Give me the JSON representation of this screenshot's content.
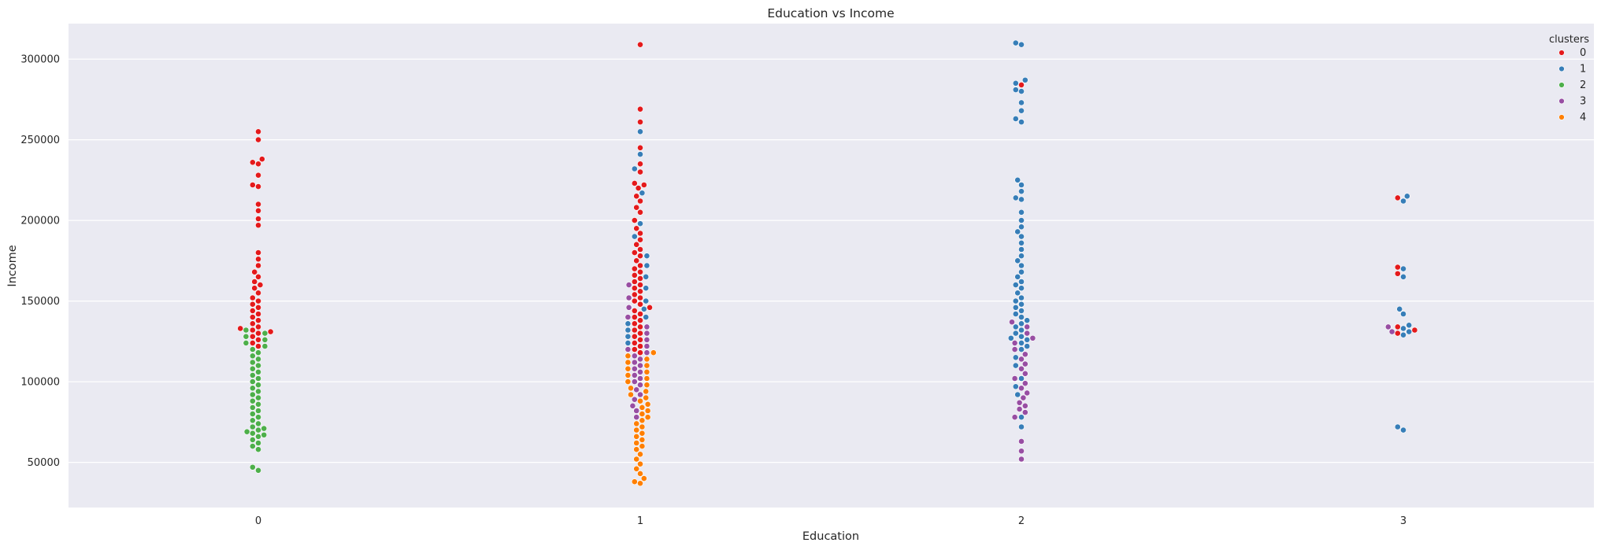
{
  "chart_data": {
    "type": "scatter",
    "subtype": "swarm",
    "title": "Education vs Income",
    "xlabel": "Education",
    "ylabel": "Income",
    "categories": [
      "0",
      "1",
      "2",
      "3"
    ],
    "yticks": [
      "50000",
      "100000",
      "150000",
      "200000",
      "250000",
      "300000"
    ],
    "ytick_values": [
      50000,
      100000,
      150000,
      200000,
      250000,
      300000
    ],
    "ylim": [
      22000,
      322000
    ],
    "grid": true,
    "legend": {
      "title": "clusters",
      "placement": "top-right",
      "entries": [
        "0",
        "1",
        "2",
        "3",
        "4"
      ]
    },
    "colors": {
      "0": "#e41a1c",
      "1": "#377eb8",
      "2": "#4daf4a",
      "3": "#984ea3",
      "4": "#ff7f00",
      "background": "#eaeaf2",
      "grid": "#ffffff"
    },
    "series": [
      {
        "name": "0",
        "points": [
          [
            0,
            255000
          ],
          [
            0,
            250000
          ],
          [
            0,
            238000
          ],
          [
            0,
            236000
          ],
          [
            0,
            235000
          ],
          [
            0,
            228000
          ],
          [
            0,
            222000
          ],
          [
            0,
            221000
          ],
          [
            0,
            210000
          ],
          [
            0,
            206000
          ],
          [
            0,
            201000
          ],
          [
            0,
            197000
          ],
          [
            0,
            180000
          ],
          [
            0,
            176000
          ],
          [
            0,
            172000
          ],
          [
            0,
            168000
          ],
          [
            0,
            165000
          ],
          [
            0,
            162000
          ],
          [
            0,
            160000
          ],
          [
            0,
            158000
          ],
          [
            0,
            155000
          ],
          [
            0,
            152000
          ],
          [
            0,
            150000
          ],
          [
            0,
            148000
          ],
          [
            0,
            146000
          ],
          [
            0,
            144000
          ],
          [
            0,
            142000
          ],
          [
            0,
            140000
          ],
          [
            0,
            138000
          ],
          [
            0,
            136000
          ],
          [
            0,
            134000
          ],
          [
            0,
            133000
          ],
          [
            0,
            132000
          ],
          [
            0,
            131000
          ],
          [
            0,
            130000
          ],
          [
            0,
            128000
          ],
          [
            0,
            126000
          ],
          [
            0,
            124000
          ],
          [
            0,
            122000
          ],
          [
            1,
            309000
          ],
          [
            1,
            269000
          ],
          [
            1,
            261000
          ],
          [
            1,
            245000
          ],
          [
            1,
            235000
          ],
          [
            1,
            230000
          ],
          [
            1,
            223000
          ],
          [
            1,
            222000
          ],
          [
            1,
            220000
          ],
          [
            1,
            215000
          ],
          [
            1,
            212000
          ],
          [
            1,
            208000
          ],
          [
            1,
            205000
          ],
          [
            1,
            200000
          ],
          [
            1,
            195000
          ],
          [
            1,
            192000
          ],
          [
            1,
            188000
          ],
          [
            1,
            185000
          ],
          [
            1,
            182000
          ],
          [
            1,
            180000
          ],
          [
            1,
            178000
          ],
          [
            1,
            175000
          ],
          [
            1,
            172000
          ],
          [
            1,
            170000
          ],
          [
            1,
            168000
          ],
          [
            1,
            166000
          ],
          [
            1,
            164000
          ],
          [
            1,
            162000
          ],
          [
            1,
            160000
          ],
          [
            1,
            158000
          ],
          [
            1,
            156000
          ],
          [
            1,
            154000
          ],
          [
            1,
            152000
          ],
          [
            1,
            150000
          ],
          [
            1,
            148000
          ],
          [
            1,
            146000
          ],
          [
            1,
            144000
          ],
          [
            1,
            142000
          ],
          [
            1,
            140000
          ],
          [
            1,
            138000
          ],
          [
            1,
            136000
          ],
          [
            1,
            134000
          ],
          [
            1,
            132000
          ],
          [
            1,
            130000
          ],
          [
            1,
            128000
          ],
          [
            1,
            126000
          ],
          [
            1,
            124000
          ],
          [
            1,
            122000
          ],
          [
            1,
            120000
          ],
          [
            1,
            118000
          ],
          [
            2,
            284000
          ],
          [
            3,
            214000
          ],
          [
            3,
            171000
          ],
          [
            3,
            167000
          ],
          [
            3,
            134000
          ],
          [
            3,
            132000
          ],
          [
            3,
            130000
          ]
        ]
      },
      {
        "name": "1",
        "points": [
          [
            1,
            255000
          ],
          [
            1,
            241000
          ],
          [
            1,
            232000
          ],
          [
            1,
            217000
          ],
          [
            1,
            198000
          ],
          [
            1,
            190000
          ],
          [
            1,
            178000
          ],
          [
            1,
            172000
          ],
          [
            1,
            165000
          ],
          [
            1,
            158000
          ],
          [
            1,
            150000
          ],
          [
            1,
            145000
          ],
          [
            1,
            140000
          ],
          [
            1,
            136000
          ],
          [
            1,
            132000
          ],
          [
            1,
            128000
          ],
          [
            1,
            124000
          ],
          [
            2,
            310000
          ],
          [
            2,
            309000
          ],
          [
            2,
            287000
          ],
          [
            2,
            285000
          ],
          [
            2,
            281000
          ],
          [
            2,
            280000
          ],
          [
            2,
            273000
          ],
          [
            2,
            268000
          ],
          [
            2,
            263000
          ],
          [
            2,
            261000
          ],
          [
            2,
            225000
          ],
          [
            2,
            222000
          ],
          [
            2,
            218000
          ],
          [
            2,
            214000
          ],
          [
            2,
            213000
          ],
          [
            2,
            205000
          ],
          [
            2,
            200000
          ],
          [
            2,
            196000
          ],
          [
            2,
            193000
          ],
          [
            2,
            190000
          ],
          [
            2,
            186000
          ],
          [
            2,
            182000
          ],
          [
            2,
            178000
          ],
          [
            2,
            175000
          ],
          [
            2,
            172000
          ],
          [
            2,
            168000
          ],
          [
            2,
            165000
          ],
          [
            2,
            162000
          ],
          [
            2,
            160000
          ],
          [
            2,
            158000
          ],
          [
            2,
            155000
          ],
          [
            2,
            152000
          ],
          [
            2,
            150000
          ],
          [
            2,
            148000
          ],
          [
            2,
            146000
          ],
          [
            2,
            144000
          ],
          [
            2,
            142000
          ],
          [
            2,
            140000
          ],
          [
            2,
            138000
          ],
          [
            2,
            136000
          ],
          [
            2,
            134000
          ],
          [
            2,
            132000
          ],
          [
            2,
            130000
          ],
          [
            2,
            128000
          ],
          [
            2,
            127000
          ],
          [
            2,
            126000
          ],
          [
            2,
            124000
          ],
          [
            2,
            122000
          ],
          [
            2,
            120000
          ],
          [
            2,
            115000
          ],
          [
            2,
            110000
          ],
          [
            2,
            102000
          ],
          [
            2,
            97000
          ],
          [
            2,
            92000
          ],
          [
            2,
            78000
          ],
          [
            2,
            72000
          ],
          [
            3,
            215000
          ],
          [
            3,
            212000
          ],
          [
            3,
            170000
          ],
          [
            3,
            165000
          ],
          [
            3,
            145000
          ],
          [
            3,
            142000
          ],
          [
            3,
            135000
          ],
          [
            3,
            133000
          ],
          [
            3,
            131000
          ],
          [
            3,
            129000
          ],
          [
            3,
            72000
          ],
          [
            3,
            70000
          ]
        ]
      },
      {
        "name": "2",
        "points": [
          [
            0,
            132000
          ],
          [
            0,
            130000
          ],
          [
            0,
            128000
          ],
          [
            0,
            126000
          ],
          [
            0,
            124000
          ],
          [
            0,
            122000
          ],
          [
            0,
            120000
          ],
          [
            0,
            118000
          ],
          [
            0,
            116000
          ],
          [
            0,
            114000
          ],
          [
            0,
            112000
          ],
          [
            0,
            110000
          ],
          [
            0,
            108000
          ],
          [
            0,
            106000
          ],
          [
            0,
            104000
          ],
          [
            0,
            102000
          ],
          [
            0,
            100000
          ],
          [
            0,
            98000
          ],
          [
            0,
            96000
          ],
          [
            0,
            94000
          ],
          [
            0,
            92000
          ],
          [
            0,
            90000
          ],
          [
            0,
            88000
          ],
          [
            0,
            86000
          ],
          [
            0,
            84000
          ],
          [
            0,
            82000
          ],
          [
            0,
            80000
          ],
          [
            0,
            78000
          ],
          [
            0,
            76000
          ],
          [
            0,
            74000
          ],
          [
            0,
            72000
          ],
          [
            0,
            71000
          ],
          [
            0,
            70000
          ],
          [
            0,
            69000
          ],
          [
            0,
            68000
          ],
          [
            0,
            67000
          ],
          [
            0,
            66000
          ],
          [
            0,
            64000
          ],
          [
            0,
            62000
          ],
          [
            0,
            60000
          ],
          [
            0,
            58000
          ],
          [
            0,
            47000
          ],
          [
            0,
            45000
          ]
        ]
      },
      {
        "name": "3",
        "points": [
          [
            1,
            160000
          ],
          [
            1,
            152000
          ],
          [
            1,
            146000
          ],
          [
            1,
            140000
          ],
          [
            1,
            134000
          ],
          [
            1,
            130000
          ],
          [
            1,
            126000
          ],
          [
            1,
            122000
          ],
          [
            1,
            120000
          ],
          [
            1,
            118000
          ],
          [
            1,
            116000
          ],
          [
            1,
            114000
          ],
          [
            1,
            112000
          ],
          [
            1,
            110000
          ],
          [
            1,
            108000
          ],
          [
            1,
            106000
          ],
          [
            1,
            104000
          ],
          [
            1,
            102000
          ],
          [
            1,
            100000
          ],
          [
            1,
            98000
          ],
          [
            1,
            95000
          ],
          [
            1,
            92000
          ],
          [
            1,
            89000
          ],
          [
            1,
            85000
          ],
          [
            1,
            82000
          ],
          [
            1,
            78000
          ],
          [
            2,
            137000
          ],
          [
            2,
            134000
          ],
          [
            2,
            130000
          ],
          [
            2,
            127000
          ],
          [
            2,
            124000
          ],
          [
            2,
            120000
          ],
          [
            2,
            117000
          ],
          [
            2,
            114000
          ],
          [
            2,
            111000
          ],
          [
            2,
            108000
          ],
          [
            2,
            105000
          ],
          [
            2,
            102000
          ],
          [
            2,
            99000
          ],
          [
            2,
            96000
          ],
          [
            2,
            93000
          ],
          [
            2,
            90000
          ],
          [
            2,
            87000
          ],
          [
            2,
            85000
          ],
          [
            2,
            83000
          ],
          [
            2,
            81000
          ],
          [
            2,
            78000
          ],
          [
            2,
            63000
          ],
          [
            2,
            57000
          ],
          [
            2,
            52000
          ],
          [
            3,
            134000
          ],
          [
            3,
            131000
          ]
        ]
      },
      {
        "name": "4",
        "points": [
          [
            1,
            118000
          ],
          [
            1,
            116000
          ],
          [
            1,
            114000
          ],
          [
            1,
            112000
          ],
          [
            1,
            110000
          ],
          [
            1,
            108000
          ],
          [
            1,
            106000
          ],
          [
            1,
            104000
          ],
          [
            1,
            102000
          ],
          [
            1,
            100000
          ],
          [
            1,
            98000
          ],
          [
            1,
            96000
          ],
          [
            1,
            94000
          ],
          [
            1,
            92000
          ],
          [
            1,
            90000
          ],
          [
            1,
            88000
          ],
          [
            1,
            86000
          ],
          [
            1,
            84000
          ],
          [
            1,
            82000
          ],
          [
            1,
            80000
          ],
          [
            1,
            78000
          ],
          [
            1,
            76000
          ],
          [
            1,
            74000
          ],
          [
            1,
            72000
          ],
          [
            1,
            70000
          ],
          [
            1,
            68000
          ],
          [
            1,
            66000
          ],
          [
            1,
            64000
          ],
          [
            1,
            62000
          ],
          [
            1,
            60000
          ],
          [
            1,
            58000
          ],
          [
            1,
            55000
          ],
          [
            1,
            52000
          ],
          [
            1,
            49000
          ],
          [
            1,
            46000
          ],
          [
            1,
            43000
          ],
          [
            1,
            40000
          ],
          [
            1,
            38000
          ],
          [
            1,
            37000
          ]
        ]
      }
    ]
  }
}
